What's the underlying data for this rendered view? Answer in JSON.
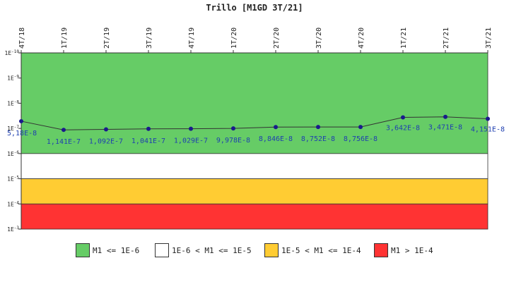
{
  "chart_data": {
    "type": "line",
    "title": "Trillo [M1GD 3T/21]",
    "y_scale": "log",
    "y_axis_inverted": true,
    "ylim": [
      1e-10,
      0.001
    ],
    "y_ticks": [
      {
        "value": 1e-10,
        "base": "1E",
        "exp": "-10"
      },
      {
        "value": 1e-09,
        "base": "1E",
        "exp": "-9"
      },
      {
        "value": 1e-08,
        "base": "1E",
        "exp": "-8"
      },
      {
        "value": 1e-07,
        "base": "1E",
        "exp": "-7"
      },
      {
        "value": 1e-06,
        "base": "1E",
        "exp": "-6"
      },
      {
        "value": 1e-05,
        "base": "1E",
        "exp": "-5"
      },
      {
        "value": 0.0001,
        "base": "1E",
        "exp": "-4"
      },
      {
        "value": 0.001,
        "base": "1E",
        "exp": "-3"
      }
    ],
    "categories": [
      "4T/18",
      "1T/19",
      "2T/19",
      "3T/19",
      "4T/19",
      "1T/20",
      "2T/20",
      "3T/20",
      "4T/20",
      "1T/21",
      "2T/21",
      "3T/21"
    ],
    "series": [
      {
        "values": [
          5.18e-08,
          1.141e-07,
          1.092e-07,
          1.041e-07,
          1.029e-07,
          9.978e-08,
          8.846e-08,
          8.752e-08,
          8.756e-08,
          3.642e-08,
          3.471e-08,
          4.151e-08
        ],
        "labels": [
          "5,18E-8",
          "1,141E-7",
          "1,092E-7",
          "1,041E-7",
          "1,029E-7",
          "9,978E-8",
          "8,846E-8",
          "8,752E-8",
          "8,756E-8",
          "3,642E-8",
          "3,471E-8",
          "4,151E-8"
        ],
        "line_color": "#333333",
        "marker_color": "#1a1a8c",
        "label_color": "#1f3fb0"
      }
    ],
    "bands": [
      {
        "from": 1e-10,
        "to": 1e-06,
        "color": "#66cc66",
        "label": "M1 <= 1E-6"
      },
      {
        "from": 1e-06,
        "to": 1e-05,
        "color": "#ffffff",
        "label": "1E-6 < M1 <= 1E-5"
      },
      {
        "from": 1e-05,
        "to": 0.0001,
        "color": "#ffcc33",
        "label": "1E-5 < M1 <= 1E-4"
      },
      {
        "from": 0.0001,
        "to": 0.001,
        "color": "#ff3333",
        "label": "M1 > 1E-4"
      }
    ],
    "legend_position": "bottom",
    "grid": false
  }
}
